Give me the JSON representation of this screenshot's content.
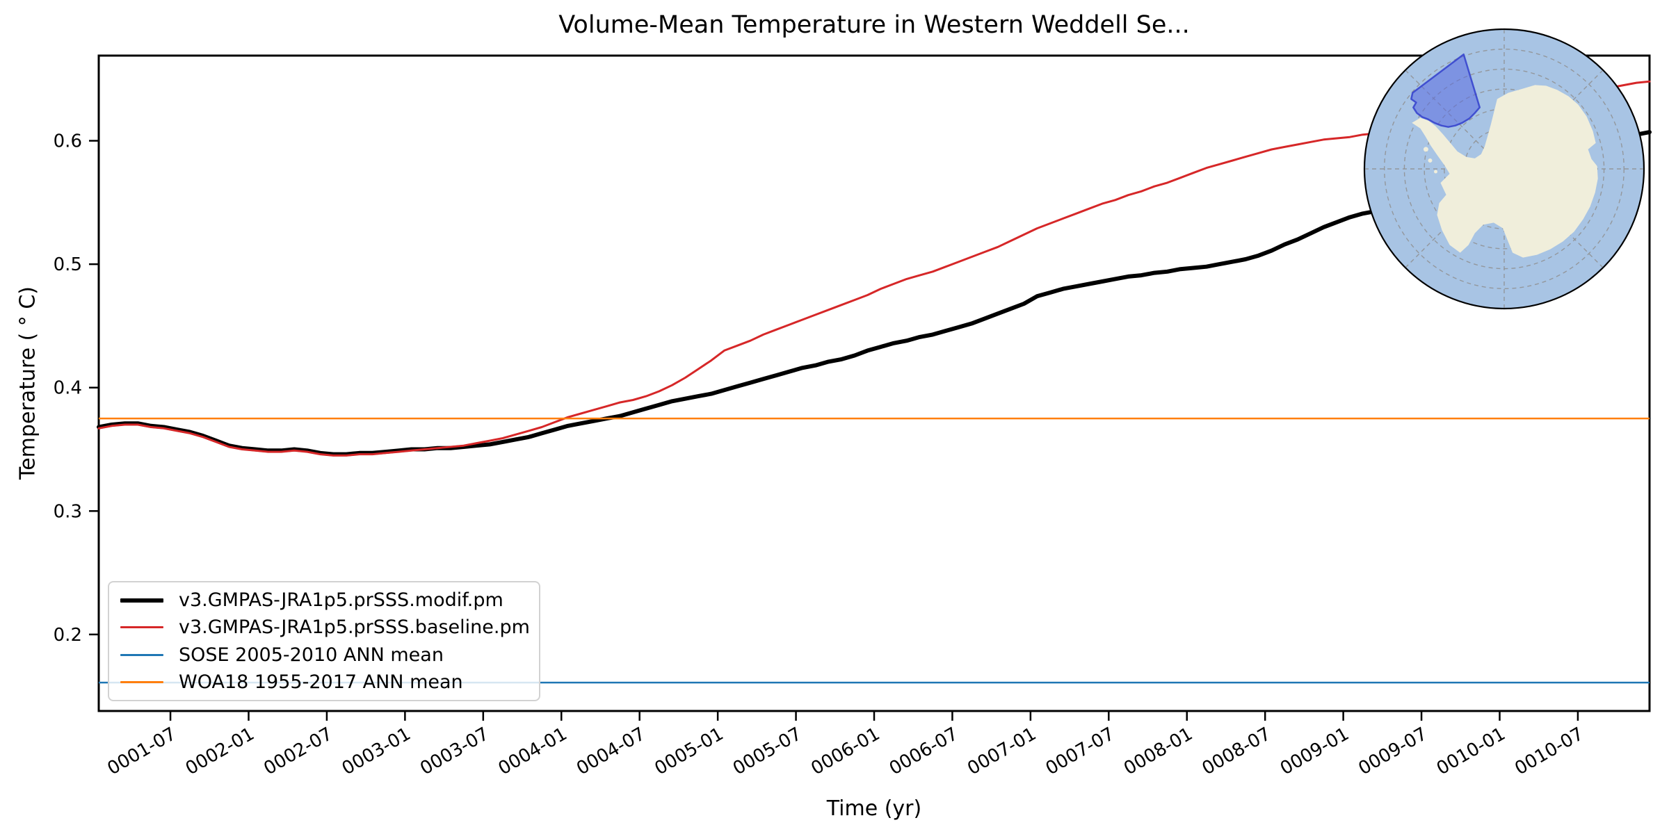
{
  "chart_data": {
    "type": "line",
    "title": "Volume-Mean Temperature in Western Weddell Se...",
    "xlabel": "Time (yr)",
    "ylabel": "Temperature ( ° C)",
    "grid": false,
    "legend_position": "lower left",
    "x_tick_labels": [
      "0001-07",
      "0002-01",
      "0002-07",
      "0003-01",
      "0003-07",
      "0004-01",
      "0004-07",
      "0005-01",
      "0005-07",
      "0006-01",
      "0006-07",
      "0007-01",
      "0007-07",
      "0008-01",
      "0008-07",
      "0009-01",
      "0009-07",
      "0010-01",
      "0010-07"
    ],
    "x_tick_months": [
      6,
      12,
      18,
      24,
      30,
      36,
      42,
      48,
      54,
      60,
      66,
      72,
      78,
      84,
      90,
      96,
      102,
      108,
      114
    ],
    "xlim_months": [
      0.5,
      119.5
    ],
    "y_tick_labels": [
      "0.2",
      "0.3",
      "0.4",
      "0.5",
      "0.6"
    ],
    "y_ticks": [
      0.2,
      0.3,
      0.4,
      0.5,
      0.6
    ],
    "ylim": [
      0.138,
      0.669
    ],
    "x_start": "0001-01",
    "x_step": "1 month",
    "series": [
      {
        "name": "v3.GMPAS-JRA1p5.prSSS.modif.pm",
        "color": "#000000",
        "linewidth": 6,
        "values": [
          0.368,
          0.37,
          0.371,
          0.371,
          0.369,
          0.368,
          0.366,
          0.364,
          0.361,
          0.357,
          0.353,
          0.351,
          0.35,
          0.349,
          0.349,
          0.35,
          0.349,
          0.347,
          0.346,
          0.346,
          0.347,
          0.347,
          0.348,
          0.349,
          0.35,
          0.35,
          0.351,
          0.351,
          0.352,
          0.353,
          0.354,
          0.356,
          0.358,
          0.36,
          0.363,
          0.366,
          0.369,
          0.371,
          0.373,
          0.375,
          0.377,
          0.38,
          0.383,
          0.386,
          0.389,
          0.391,
          0.393,
          0.395,
          0.398,
          0.401,
          0.404,
          0.407,
          0.41,
          0.413,
          0.416,
          0.418,
          0.421,
          0.423,
          0.426,
          0.43,
          0.433,
          0.436,
          0.438,
          0.441,
          0.443,
          0.446,
          0.449,
          0.452,
          0.456,
          0.46,
          0.464,
          0.468,
          0.474,
          0.477,
          0.48,
          0.482,
          0.484,
          0.486,
          0.488,
          0.49,
          0.491,
          0.493,
          0.494,
          0.496,
          0.497,
          0.498,
          0.5,
          0.502,
          0.504,
          0.507,
          0.511,
          0.516,
          0.52,
          0.525,
          0.53,
          0.534,
          0.538,
          0.541,
          0.543,
          0.545,
          0.546,
          0.548,
          0.55,
          0.553,
          0.556,
          0.56,
          0.564,
          0.568,
          0.572,
          0.576,
          0.58,
          0.584,
          0.587,
          0.59,
          0.593,
          0.596,
          0.599,
          0.602,
          0.605,
          0.607
        ]
      },
      {
        "name": "v3.GMPAS-JRA1p5.prSSS.baseline.pm",
        "color": "#d62728",
        "linewidth": 3,
        "values": [
          0.367,
          0.369,
          0.37,
          0.37,
          0.368,
          0.367,
          0.365,
          0.363,
          0.36,
          0.356,
          0.352,
          0.35,
          0.349,
          0.348,
          0.348,
          0.349,
          0.348,
          0.346,
          0.345,
          0.345,
          0.346,
          0.346,
          0.347,
          0.348,
          0.349,
          0.35,
          0.351,
          0.352,
          0.353,
          0.355,
          0.357,
          0.359,
          0.362,
          0.365,
          0.368,
          0.372,
          0.376,
          0.379,
          0.382,
          0.385,
          0.388,
          0.39,
          0.393,
          0.397,
          0.402,
          0.408,
          0.415,
          0.422,
          0.43,
          0.434,
          0.438,
          0.443,
          0.447,
          0.451,
          0.455,
          0.459,
          0.463,
          0.467,
          0.471,
          0.475,
          0.48,
          0.484,
          0.488,
          0.491,
          0.494,
          0.498,
          0.502,
          0.506,
          0.51,
          0.514,
          0.519,
          0.524,
          0.529,
          0.533,
          0.537,
          0.541,
          0.545,
          0.549,
          0.552,
          0.556,
          0.559,
          0.563,
          0.566,
          0.57,
          0.574,
          0.578,
          0.581,
          0.584,
          0.587,
          0.59,
          0.593,
          0.595,
          0.597,
          0.599,
          0.601,
          0.602,
          0.603,
          0.605,
          0.606,
          0.607,
          0.608,
          0.61,
          0.611,
          0.613,
          0.614,
          0.616,
          0.618,
          0.62,
          0.622,
          0.624,
          0.627,
          0.63,
          0.633,
          0.636,
          0.638,
          0.641,
          0.643,
          0.645,
          0.647,
          0.648
        ]
      },
      {
        "name": "SOSE 2005-2010 ANN mean",
        "color": "#1f77b4",
        "linewidth": 2.5,
        "constant": 0.161
      },
      {
        "name": "WOA18 1955-2017 ANN mean",
        "color": "#ff7f0e",
        "linewidth": 2.5,
        "constant": 0.375
      }
    ]
  },
  "inset_map": {
    "description": "South polar stereographic map of Antarctica with highlighted Western Weddell Sea region",
    "ocean_color": "#a8c4e4",
    "land_color": "#f0eedb",
    "graticule_color": "#8f8f8f",
    "outline_color": "#000000",
    "highlight_fill": "#5a6be0",
    "highlight_stroke": "#3240cc"
  }
}
